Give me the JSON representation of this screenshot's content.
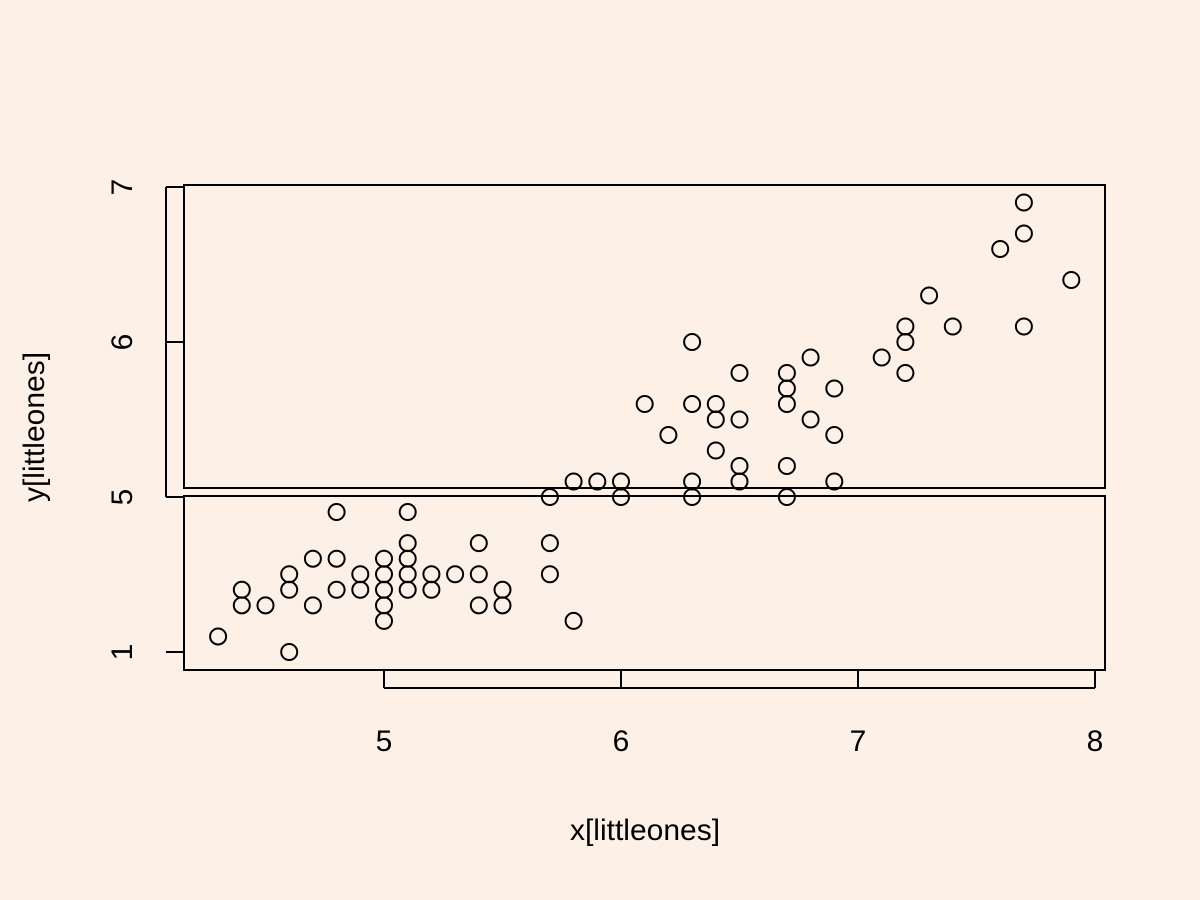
{
  "colors": {
    "background": "#fdf1e7",
    "points": "#000000",
    "axes": "#000000"
  },
  "chart_data": {
    "type": "scatter",
    "title": "",
    "xlabel": "x[littleones]",
    "ylabel": "y[littleones]",
    "marker": "open-circle",
    "grid": false,
    "axis_break": {
      "between": [
        1,
        5
      ],
      "note": "broken y-axis: lower panel shows 1 to 5, upper panel shows 5 to 7"
    },
    "x_ticks": [
      5,
      6,
      7,
      8
    ],
    "x_tick_labels": [
      "5",
      "6",
      "7",
      "8"
    ],
    "y_ticks_lower": [
      1
    ],
    "y_ticks_lower_labels": [
      "1"
    ],
    "y_ticks_upper": [
      5,
      6,
      7
    ],
    "y_ticks_upper_labels": [
      "5",
      "6",
      "7"
    ],
    "xlim": [
      4.15,
      8.05
    ],
    "ylim_lower": [
      1,
      5
    ],
    "ylim_upper": [
      5,
      7
    ],
    "points_upper": [
      [
        7.7,
        6.9
      ],
      [
        7.7,
        6.7
      ],
      [
        7.6,
        6.6
      ],
      [
        7.9,
        6.4
      ],
      [
        7.3,
        6.3
      ],
      [
        7.2,
        6.1
      ],
      [
        7.4,
        6.1
      ],
      [
        7.7,
        6.1
      ],
      [
        6.3,
        6.0
      ],
      [
        7.2,
        6.0
      ],
      [
        6.8,
        5.9
      ],
      [
        7.1,
        5.9
      ],
      [
        6.5,
        5.8
      ],
      [
        6.7,
        5.8
      ],
      [
        7.2,
        5.8
      ],
      [
        6.7,
        5.7
      ],
      [
        6.9,
        5.7
      ],
      [
        6.1,
        5.6
      ],
      [
        6.3,
        5.6
      ],
      [
        6.4,
        5.6
      ],
      [
        6.7,
        5.6
      ],
      [
        6.4,
        5.5
      ],
      [
        6.5,
        5.5
      ],
      [
        6.8,
        5.5
      ],
      [
        6.2,
        5.4
      ],
      [
        6.9,
        5.4
      ],
      [
        6.4,
        5.3
      ],
      [
        6.5,
        5.2
      ],
      [
        6.7,
        5.2
      ],
      [
        5.8,
        5.1
      ],
      [
        5.9,
        5.1
      ],
      [
        6.0,
        5.1
      ],
      [
        6.3,
        5.1
      ],
      [
        6.5,
        5.1
      ],
      [
        6.9,
        5.1
      ],
      [
        5.7,
        5.0
      ],
      [
        6.0,
        5.0
      ],
      [
        6.3,
        5.0
      ],
      [
        6.7,
        5.0
      ]
    ],
    "points_lower": [
      [
        4.8,
        4.9
      ],
      [
        5.1,
        4.9
      ],
      [
        5.1,
        4.7
      ],
      [
        5.4,
        4.7
      ],
      [
        5.7,
        4.7
      ],
      [
        4.7,
        4.6
      ],
      [
        4.8,
        4.6
      ],
      [
        5.0,
        4.6
      ],
      [
        5.1,
        4.6
      ],
      [
        4.6,
        4.5
      ],
      [
        4.9,
        4.5
      ],
      [
        5.0,
        4.5
      ],
      [
        5.1,
        4.5
      ],
      [
        5.2,
        4.5
      ],
      [
        5.3,
        4.5
      ],
      [
        5.4,
        4.5
      ],
      [
        5.7,
        4.5
      ],
      [
        4.4,
        4.4
      ],
      [
        4.6,
        4.4
      ],
      [
        4.8,
        4.4
      ],
      [
        4.9,
        4.4
      ],
      [
        5.0,
        4.4
      ],
      [
        5.1,
        4.4
      ],
      [
        5.2,
        4.4
      ],
      [
        5.5,
        4.4
      ],
      [
        4.4,
        4.3
      ],
      [
        4.5,
        4.3
      ],
      [
        4.7,
        4.3
      ],
      [
        5.0,
        4.3
      ],
      [
        5.4,
        4.3
      ],
      [
        5.5,
        4.3
      ],
      [
        5.0,
        4.2
      ],
      [
        5.8,
        4.2
      ],
      [
        4.3,
        4.1
      ],
      [
        4.6,
        4.0
      ]
    ]
  }
}
